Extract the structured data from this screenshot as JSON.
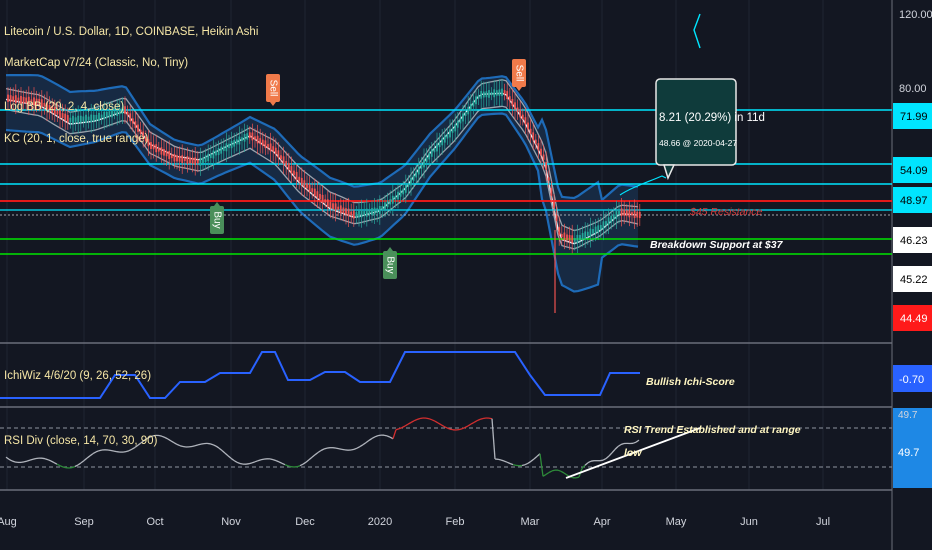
{
  "main_chart": {
    "symbol_title": "Litecoin / U.S. Dollar, 1D, COINBASE, Heikin Ashi",
    "indicators": [
      "MarketCap v7/24 (Classic, No, Tiny)",
      "Log BB (20, 2, 4, close)",
      "KC (20, 1, close, true range)"
    ]
  },
  "price_axis": {
    "ticks": [
      "120.00",
      "80.00"
    ],
    "badges": [
      {
        "label": "71.99",
        "color": "#00e5ff",
        "text_color": "#000000"
      },
      {
        "label": "54.09",
        "color": "#00e5ff",
        "text_color": "#000000"
      },
      {
        "label": "48.97",
        "color": "#00e5ff",
        "text_color": "#000000"
      },
      {
        "label": "46.23",
        "color": "#ffffff",
        "text_color": "#000000"
      },
      {
        "label": "45.22",
        "color": "#ffffff",
        "text_color": "#000000"
      },
      {
        "label": "44.49",
        "color": "#ff1a1a",
        "text_color": "#ffffff"
      }
    ]
  },
  "signals": [
    {
      "label": "Sell",
      "color": "#f07a4a"
    },
    {
      "label": "Buy",
      "color": "#4a8f5a"
    },
    {
      "label": "Buy",
      "color": "#4a8f5a"
    },
    {
      "label": "Sell",
      "color": "#f07a4a"
    }
  ],
  "projection_box": {
    "line1": "8.21 (20.29%) in 11d",
    "line2": "48.66 @ 2020-04-27"
  },
  "annotations": {
    "resistance": "$45 Resistance",
    "support": "Breakdown Support at $37",
    "ichi": "Bullish Ichi-Score",
    "rsi_line1": "RSI Trend Established and at range",
    "rsi_line2": "low"
  },
  "ichi_pane": {
    "title": "IchiWiz 4/6/20 (9, 26, 52, 26)",
    "badge": "-0.70",
    "badge_color": "#2962ff"
  },
  "rsi_pane": {
    "title": "RSI Div (close, 14, 70, 30, 90)",
    "ticks": [
      "49.7",
      "49.7"
    ],
    "badge_color": "#1e88e5"
  },
  "time_axis": {
    "labels": [
      "Aug",
      "Sep",
      "Oct",
      "Nov",
      "Dec",
      "2020",
      "Feb",
      "Mar",
      "Apr",
      "May",
      "Jun",
      "Jul"
    ]
  },
  "colors": {
    "background": "#131722",
    "cyan_line": "#00e5ff",
    "red_line": "#ff1a1a",
    "green_line": "#00e600",
    "up_candle": "#26a69a",
    "down_candle": "#ef5350"
  }
}
